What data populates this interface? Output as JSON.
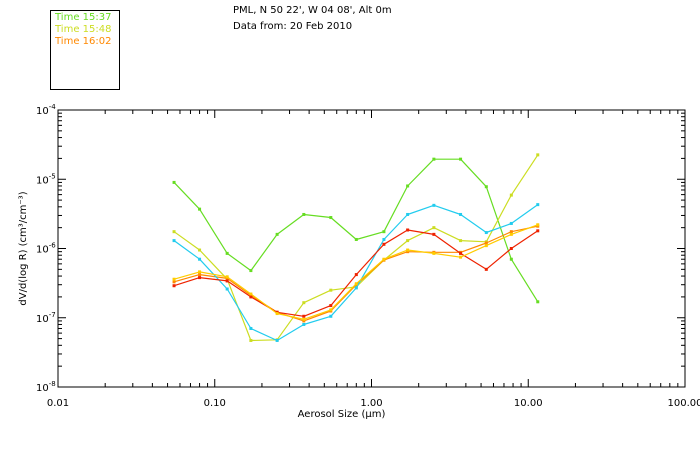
{
  "header": {
    "location": "PML, N 50 22', W 04 08', Alt 0m",
    "date_line": "Data from: 20 Feb 2010"
  },
  "colors": {
    "accent": "#ff0000",
    "axis": "#000000"
  },
  "chart_data": {
    "type": "line",
    "title": "",
    "xlabel": "Aerosol Size (μm)",
    "ylabel": "dV/d(log R) (cm³/cm⁻³)",
    "xscale": "log",
    "yscale": "log",
    "xlim": [
      0.01,
      100
    ],
    "ylim": [
      1e-08,
      0.0001
    ],
    "x_tick_labels": [
      "0.01",
      "0.10",
      "1.00",
      "10.00",
      "100.00"
    ],
    "y_tick_labels": [
      {
        "mantissa": "10",
        "exp": "-8"
      },
      {
        "mantissa": "10",
        "exp": "-7"
      },
      {
        "mantissa": "10",
        "exp": "-6"
      },
      {
        "mantissa": "10",
        "exp": "-5"
      },
      {
        "mantissa": "10",
        "exp": "-4"
      }
    ],
    "grid": false,
    "legend_position": "top-left box",
    "x": [
      0.055,
      0.08,
      0.12,
      0.17,
      0.25,
      0.37,
      0.55,
      0.8,
      1.2,
      1.7,
      2.5,
      3.7,
      5.4,
      7.8,
      11.5
    ],
    "series": [
      {
        "name": "Time 15:37",
        "color": "#66dd22",
        "values": [
          9e-06,
          3.7e-06,
          8.5e-07,
          4.8e-07,
          1.6e-06,
          3.1e-06,
          2.8e-06,
          1.35e-06,
          1.75e-06,
          8e-06,
          1.95e-05,
          1.95e-05,
          7.8e-06,
          7e-07,
          1.7e-07
        ]
      },
      {
        "name": "Time 15:48",
        "color": "#ccdd22",
        "values": [
          1.75e-06,
          9.5e-07,
          3.6e-07,
          4.7e-08,
          4.8e-08,
          1.65e-07,
          2.5e-07,
          2.8e-07,
          6.8e-07,
          1.3e-06,
          2e-06,
          1.3e-06,
          1.25e-06,
          5.9e-06,
          2.25e-05
        ]
      },
      {
        "name": "Time 16:02",
        "color": "#ff8800",
        "values": [
          3.3e-07,
          4.2e-07,
          3.7e-07,
          2.1e-07,
          1.2e-07,
          9e-08,
          1.25e-07,
          3e-07,
          6.8e-07,
          9e-07,
          8.8e-07,
          8.8e-07,
          1.2e-06,
          1.75e-06,
          2.1e-06
        ]
      },
      {
        "color": "#22ccee",
        "values": [
          1.3e-06,
          7e-07,
          2.6e-07,
          7e-08,
          4.7e-08,
          8e-08,
          1.05e-07,
          2.7e-07,
          1.35e-06,
          3.1e-06,
          4.2e-06,
          3.1e-06,
          1.7e-06,
          2.3e-06,
          4.3e-06
        ]
      },
      {
        "color": "#ee2200",
        "values": [
          2.9e-07,
          3.8e-07,
          3.4e-07,
          2e-07,
          1.2e-07,
          1.05e-07,
          1.5e-07,
          4.2e-07,
          1.15e-06,
          1.85e-06,
          1.6e-06,
          8.5e-07,
          5e-07,
          1e-06,
          1.8e-06
        ]
      },
      {
        "color": "#ffcc00",
        "values": [
          3.6e-07,
          4.6e-07,
          3.9e-07,
          2.2e-07,
          1.15e-07,
          9.5e-08,
          1.3e-07,
          3.1e-07,
          7e-07,
          9.5e-07,
          8.5e-07,
          7.5e-07,
          1.1e-06,
          1.6e-06,
          2.2e-06
        ]
      }
    ]
  }
}
